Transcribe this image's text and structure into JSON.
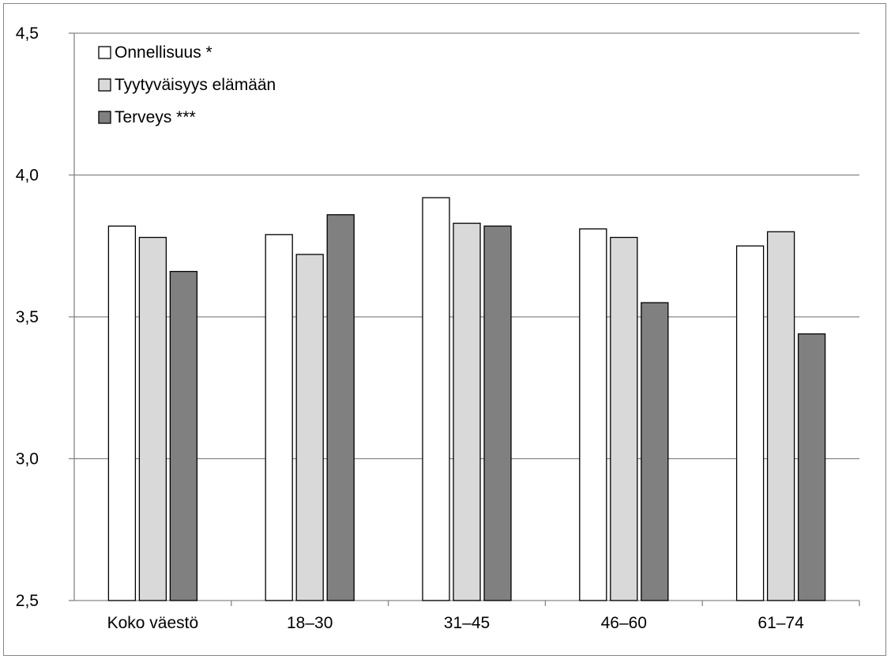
{
  "chart_data": {
    "type": "bar",
    "categories": [
      "Koko väestö",
      "18–30",
      "31–45",
      "46–60",
      "61–74"
    ],
    "series": [
      {
        "name": "Onnellisuus *",
        "color": "#ffffff",
        "values": [
          3.82,
          3.79,
          3.92,
          3.81,
          3.75
        ]
      },
      {
        "name": "Tyytyväisyys elämään",
        "color": "#d9d9d9",
        "values": [
          3.78,
          3.72,
          3.83,
          3.78,
          3.8
        ]
      },
      {
        "name": "Terveys  ***",
        "color": "#808080",
        "values": [
          3.66,
          3.86,
          3.82,
          3.55,
          3.44
        ]
      }
    ],
    "ylim": [
      2.5,
      4.5
    ],
    "y_ticks": [
      "2,5",
      "3,0",
      "3,5",
      "4,0",
      "4,5"
    ],
    "y_tick_values": [
      2.5,
      3.0,
      3.5,
      4.0,
      4.5
    ],
    "grid": true,
    "legend_position": "top-left",
    "title": "",
    "xlabel": "",
    "ylabel": ""
  }
}
